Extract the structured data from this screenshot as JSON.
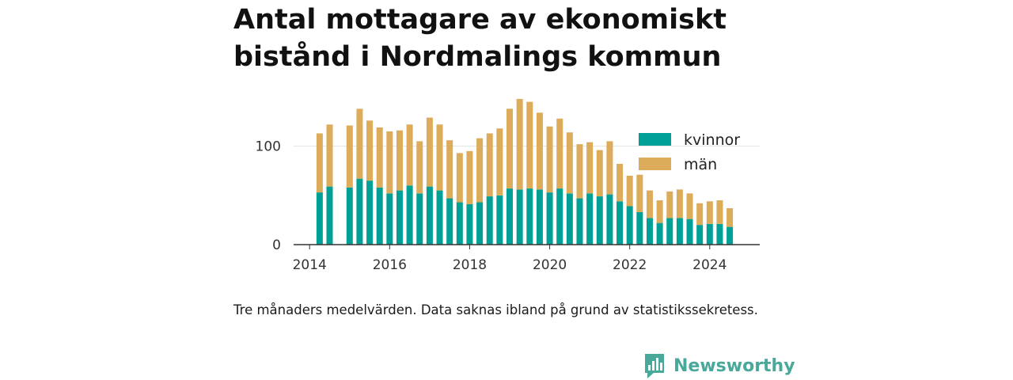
{
  "title": "Antal mottagare av ekonomiskt bistånd i Nordmalings kommun",
  "note": "Tre månaders medelvärden. Data saknas ibland på grund av statistikssekretess.",
  "brand": {
    "name": "Newsworthy",
    "icon": "newsworthy-logo-icon",
    "color": "#48a99a"
  },
  "colors": {
    "kvinnor": "#00a096",
    "man": "#dcac5a"
  },
  "chart_data": {
    "type": "bar",
    "stacked": true,
    "legend_position": "top-right",
    "ylim": [
      0,
      160
    ],
    "yticks": [
      0,
      100
    ],
    "xlim": [
      2013.6,
      2025.25
    ],
    "xticks": [
      2014,
      2016,
      2018,
      2020,
      2022,
      2024
    ],
    "grid": "horizontal",
    "x": [
      "2014-04",
      "2014-07",
      "2015-01",
      "2015-04",
      "2015-07",
      "2015-10",
      "2016-01",
      "2016-04",
      "2016-07",
      "2016-10",
      "2017-01",
      "2017-04",
      "2017-07",
      "2017-10",
      "2018-01",
      "2018-04",
      "2018-07",
      "2018-10",
      "2019-01",
      "2019-04",
      "2019-07",
      "2019-10",
      "2020-01",
      "2020-04",
      "2020-07",
      "2020-10",
      "2021-01",
      "2021-04",
      "2021-07",
      "2021-10",
      "2022-01",
      "2022-04",
      "2022-07",
      "2022-10",
      "2023-01",
      "2023-04",
      "2023-07",
      "2023-10",
      "2024-01",
      "2024-04",
      "2024-07"
    ],
    "series": [
      {
        "name": "kvinnor",
        "values": [
          53,
          59,
          58,
          67,
          65,
          58,
          52,
          55,
          60,
          52,
          59,
          55,
          47,
          43,
          41,
          43,
          49,
          50,
          57,
          56,
          57,
          56,
          53,
          57,
          52,
          47,
          52,
          49,
          51,
          44,
          39,
          33,
          27,
          22,
          27,
          27,
          26,
          20,
          21,
          21,
          18
        ]
      },
      {
        "name": "män",
        "values": [
          60,
          63,
          63,
          71,
          61,
          61,
          63,
          61,
          62,
          53,
          70,
          67,
          59,
          50,
          54,
          65,
          64,
          68,
          81,
          92,
          88,
          78,
          67,
          71,
          62,
          55,
          52,
          47,
          54,
          38,
          31,
          38,
          28,
          23,
          27,
          29,
          26,
          22,
          23,
          24,
          19
        ]
      }
    ]
  }
}
